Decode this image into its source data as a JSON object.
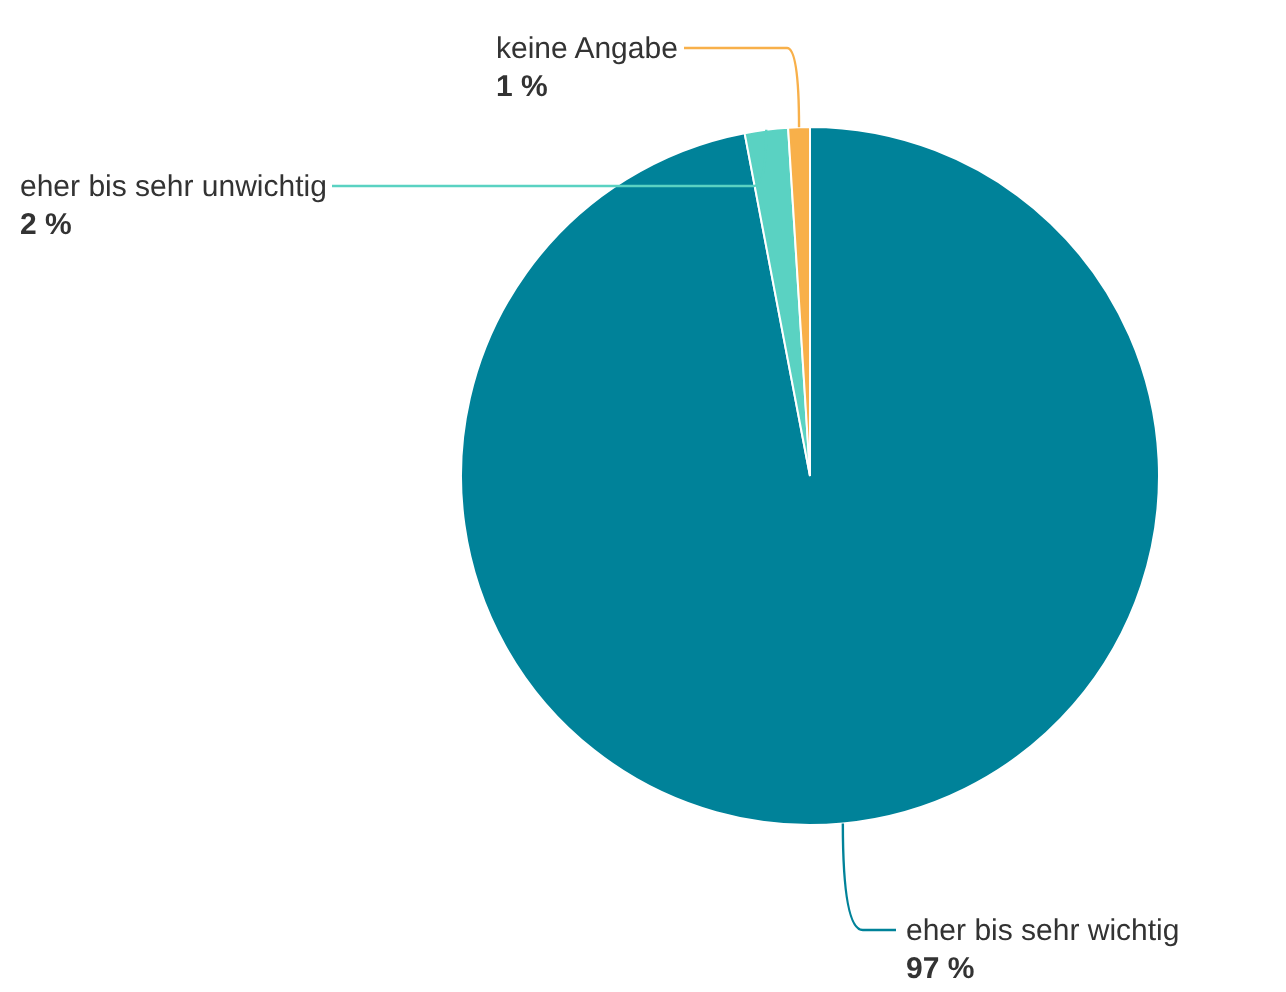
{
  "chart_data": {
    "type": "pie",
    "categories": [
      "eher bis sehr wichtig",
      "eher bis sehr unwichtig",
      "keine Angabe"
    ],
    "values": [
      97,
      2,
      1
    ],
    "colors": [
      "#008299",
      "#5ad2c2",
      "#f8b04a"
    ],
    "value_labels": [
      "97 %",
      "2 %",
      "1 %"
    ],
    "legend": false
  }
}
